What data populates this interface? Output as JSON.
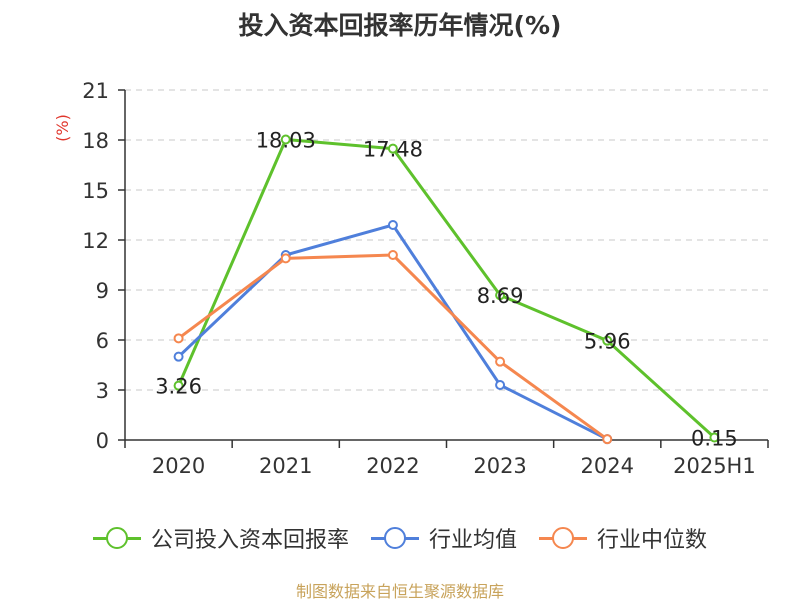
{
  "chart_data": {
    "type": "line",
    "title": "投入资本回报率历年情况(%)",
    "ylabel": "(%)",
    "xlabel": "",
    "categories": [
      "2020",
      "2021",
      "2022",
      "2023",
      "2024",
      "2025H1"
    ],
    "ylim": [
      0,
      21
    ],
    "yticks": [
      0,
      3,
      6,
      9,
      12,
      15,
      18,
      21
    ],
    "grid": true,
    "legend_position": "bottom",
    "series": [
      {
        "name": "公司投入资本回报率",
        "color": "#5ec12c",
        "values": [
          3.26,
          18.03,
          17.48,
          8.69,
          5.96,
          0.15
        ],
        "labels": [
          "3.26",
          "18.03",
          "17.48",
          "8.69",
          "5.96",
          "0.15"
        ]
      },
      {
        "name": "行业均值",
        "color": "#4f7fdb",
        "values": [
          5.0,
          11.1,
          12.9,
          3.3,
          0.05,
          null
        ]
      },
      {
        "name": "行业中位数",
        "color": "#f5874f",
        "values": [
          6.1,
          10.9,
          11.1,
          4.7,
          0.05,
          null
        ]
      }
    ]
  },
  "source": "制图数据来自恒生聚源数据库"
}
